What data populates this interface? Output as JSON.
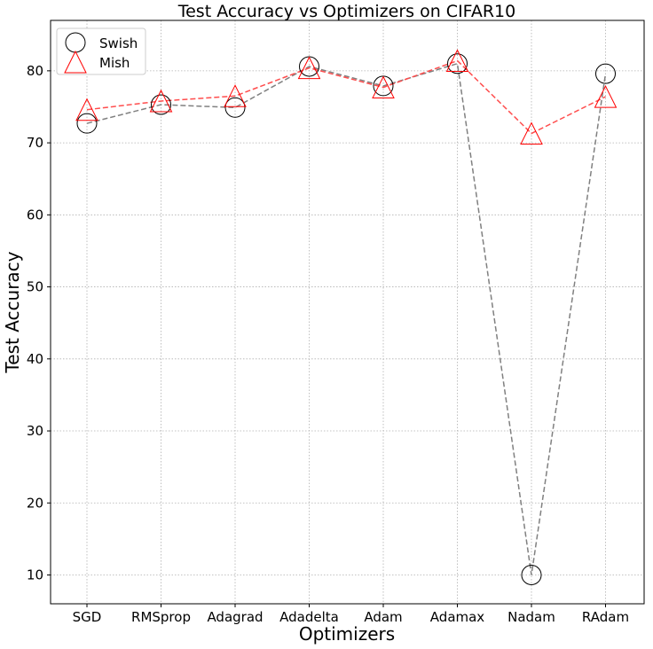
{
  "chart_data": {
    "type": "line",
    "title": "Test Accuracy vs Optimizers on CIFAR10",
    "xlabel": "Optimizers",
    "ylabel": "Test Accuracy",
    "categories": [
      "SGD",
      "RMSprop",
      "Adagrad",
      "Adadelta",
      "Adam",
      "Adamax",
      "Nadam",
      "RAdam"
    ],
    "ylim": [
      6,
      87
    ],
    "yticks": [
      10,
      20,
      30,
      40,
      50,
      60,
      70,
      80
    ],
    "grid": true,
    "legend_position": "top-left",
    "series": [
      {
        "name": "Swish",
        "marker": "circle",
        "color": "#000000",
        "line_color": "#808080",
        "values": [
          72.7,
          75.3,
          74.9,
          80.6,
          77.9,
          81.0,
          10.0,
          79.6
        ]
      },
      {
        "name": "Mish",
        "marker": "triangle",
        "color": "#ff0000",
        "line_color": "#ff4d4d",
        "values": [
          74.6,
          75.8,
          76.5,
          80.4,
          77.7,
          81.4,
          71.3,
          76.4
        ]
      }
    ]
  }
}
